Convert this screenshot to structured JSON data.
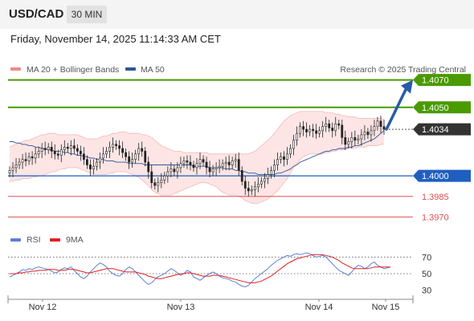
{
  "header": {
    "symbol": "USD/CAD",
    "timeframe": "30 MIN"
  },
  "datetime": "Friday, November 14, 2025 11:14:33 AM CET",
  "legend": {
    "ma20": {
      "label": "MA 20 + Bollinger Bands",
      "color": "#f08a8a"
    },
    "ma50": {
      "label": "MA 50",
      "color": "#2f5597"
    },
    "credit": "Research © 2025 Trading Central"
  },
  "rsi_legend": {
    "rsi": {
      "label": "RSI",
      "color": "#5b7fd6"
    },
    "ma9": {
      "label": "9MA",
      "color": "#e02020"
    }
  },
  "colors": {
    "resistance": "#4a9a00",
    "support": "#1f5fbf",
    "support_below": "#e05050",
    "arrow": "#2a5ba8",
    "current": "#333333",
    "bands_fill": "#fde0e0",
    "candle": "#222222"
  },
  "chart_data": [
    {
      "type": "candlestick",
      "ylim": [
        1.3955,
        1.4085
      ],
      "x_ticks": [
        "Nov 12",
        "Nov 13",
        "Nov 14",
        "Nov 15"
      ],
      "levels": [
        {
          "value": 1.407,
          "label": "1.4070",
          "kind": "resistance"
        },
        {
          "value": 1.405,
          "label": "1.4050",
          "kind": "resistance"
        },
        {
          "value": 1.4034,
          "label": "1.4034",
          "kind": "current"
        },
        {
          "value": 1.4,
          "label": "1.4000",
          "kind": "support"
        },
        {
          "value": 1.3985,
          "label": "1.3985",
          "kind": "support_below"
        },
        {
          "value": 1.397,
          "label": "1.3970",
          "kind": "support_below"
        }
      ],
      "close": [
        1.4004,
        1.4006,
        1.4008,
        1.401,
        1.4012,
        1.4011,
        1.4014,
        1.4013,
        1.4016,
        1.4018,
        1.402,
        1.4019,
        1.4021,
        1.4018,
        1.4016,
        1.4015,
        1.4019,
        1.4021,
        1.402,
        1.4022,
        1.402,
        1.4018,
        1.4016,
        1.4012,
        1.4008,
        1.4005,
        1.4007,
        1.401,
        1.4013,
        1.4016,
        1.4018,
        1.4021,
        1.4023,
        1.4022,
        1.402,
        1.4017,
        1.4014,
        1.401,
        1.4012,
        1.4016,
        1.402,
        1.4018,
        1.401,
        1.4003,
        1.3995,
        1.3993,
        1.3995,
        1.3997,
        1.4,
        1.4003,
        1.4005,
        1.4003,
        1.4006,
        1.4009,
        1.4011,
        1.401,
        1.4008,
        1.4006,
        1.4009,
        1.4012,
        1.401,
        1.4006,
        1.4003,
        1.4005,
        1.4006,
        1.4007,
        1.4009,
        1.401,
        1.4008,
        1.4011,
        1.4012,
        1.4004,
        1.3996,
        1.3991,
        1.3989,
        1.399,
        1.3992,
        1.3994,
        1.3996,
        1.3998,
        1.4001,
        1.4004,
        1.4008,
        1.4012,
        1.4014,
        1.4012,
        1.4016,
        1.402,
        1.4026,
        1.4031,
        1.4036,
        1.4034,
        1.4032,
        1.4034,
        1.4033,
        1.4031,
        1.4033,
        1.4036,
        1.4038,
        1.4035,
        1.4033,
        1.4038,
        1.4037,
        1.4028,
        1.4023,
        1.4025,
        1.4028,
        1.4026,
        1.4027,
        1.403,
        1.4032,
        1.403,
        1.4033,
        1.4036,
        1.404,
        1.4036,
        1.4034
      ],
      "bollinger_band_upper": [
        1.4021,
        1.4022,
        1.4023,
        1.4024,
        1.4025,
        1.4026,
        1.4026,
        1.4027,
        1.4028,
        1.4029,
        1.403,
        1.403,
        1.4031,
        1.4031,
        1.4031,
        1.403,
        1.403,
        1.403,
        1.403,
        1.403,
        1.403,
        1.403,
        1.4029,
        1.4028,
        1.4027,
        1.4027,
        1.4027,
        1.4027,
        1.4028,
        1.4029,
        1.4029,
        1.403,
        1.4031,
        1.4031,
        1.4032,
        1.4032,
        1.4032,
        1.4031,
        1.4031,
        1.4031,
        1.4031,
        1.403,
        1.403,
        1.4029,
        1.4028,
        1.4026,
        1.4024,
        1.4022,
        1.4021,
        1.402,
        1.4019,
        1.4018,
        1.4018,
        1.4018,
        1.4017,
        1.4017,
        1.4017,
        1.4017,
        1.4017,
        1.4017,
        1.4017,
        1.4017,
        1.4016,
        1.4016,
        1.4016,
        1.4016,
        1.4016,
        1.4016,
        1.4016,
        1.4016,
        1.4016,
        1.4016,
        1.4016,
        1.4016,
        1.4016,
        1.4017,
        1.4018,
        1.402,
        1.4022,
        1.4024,
        1.4026,
        1.4028,
        1.4031,
        1.4034,
        1.4037,
        1.404,
        1.4042,
        1.4044,
        1.4045,
        1.4046,
        1.4047,
        1.4047,
        1.4047,
        1.4047,
        1.4047,
        1.4047,
        1.4047,
        1.4047,
        1.4046,
        1.4046,
        1.4046,
        1.4045,
        1.4045,
        1.4044,
        1.4044,
        1.4043,
        1.4043,
        1.4043,
        1.4042,
        1.4042,
        1.4042,
        1.4042,
        1.4042,
        1.4042,
        1.4042,
        1.4042,
        1.4041
      ],
      "bollinger_band_lower": [
        1.3996,
        1.3996,
        1.3997,
        1.3997,
        1.3998,
        1.3998,
        1.3998,
        1.3999,
        1.3999,
        1.4,
        1.4,
        1.4001,
        1.4002,
        1.4003,
        1.4003,
        1.4004,
        1.4005,
        1.4005,
        1.4006,
        1.4006,
        1.4006,
        1.4006,
        1.4005,
        1.4004,
        1.4003,
        1.4002,
        1.4001,
        1.4001,
        1.4001,
        1.4001,
        1.4001,
        1.4002,
        1.4002,
        1.4003,
        1.4003,
        1.4003,
        1.4003,
        1.4002,
        1.4001,
        1.4,
        1.3999,
        1.3997,
        1.3995,
        1.3993,
        1.399,
        1.3988,
        1.3987,
        1.3986,
        1.3986,
        1.3986,
        1.3986,
        1.3987,
        1.3988,
        1.3989,
        1.399,
        1.3991,
        1.3992,
        1.3993,
        1.3994,
        1.3995,
        1.3995,
        1.3995,
        1.3994,
        1.3993,
        1.3992,
        1.399,
        1.3988,
        1.3987,
        1.3986,
        1.3986,
        1.3986,
        1.3985,
        1.3984,
        1.3982,
        1.3981,
        1.398,
        1.398,
        1.398,
        1.3981,
        1.3982,
        1.3983,
        1.3985,
        1.3987,
        1.3989,
        1.3992,
        1.3995,
        1.3998,
        1.4002,
        1.4006,
        1.4009,
        1.4012,
        1.4014,
        1.4015,
        1.4016,
        1.4016,
        1.4016,
        1.4016,
        1.4016,
        1.4017,
        1.4017,
        1.4018,
        1.4018,
        1.4019,
        1.4019,
        1.4019,
        1.402,
        1.402,
        1.402,
        1.4021,
        1.4021,
        1.4021,
        1.4022,
        1.4022,
        1.4022,
        1.4022,
        1.4023,
        1.4023
      ],
      "ma50": [
        1.4025,
        1.4025,
        1.4024,
        1.4024,
        1.4023,
        1.4023,
        1.4022,
        1.4022,
        1.4021,
        1.4021,
        1.402,
        1.402,
        1.4019,
        1.4019,
        1.4018,
        1.4018,
        1.4018,
        1.4017,
        1.4017,
        1.4016,
        1.4016,
        1.4015,
        1.4015,
        1.4014,
        1.4014,
        1.4013,
        1.4013,
        1.4012,
        1.4012,
        1.4012,
        1.4011,
        1.4011,
        1.4011,
        1.401,
        1.401,
        1.401,
        1.401,
        1.4009,
        1.4009,
        1.4009,
        1.4009,
        1.4009,
        1.4008,
        1.4008,
        1.4008,
        1.4008,
        1.4008,
        1.4008,
        1.4008,
        1.4008,
        1.4008,
        1.4008,
        1.4008,
        1.4008,
        1.4008,
        1.4008,
        1.4008,
        1.4007,
        1.4007,
        1.4007,
        1.4007,
        1.4007,
        1.4006,
        1.4006,
        1.4006,
        1.4006,
        1.4006,
        1.4005,
        1.4005,
        1.4005,
        1.4004,
        1.4004,
        1.4003,
        1.4003,
        1.4002,
        1.4002,
        1.4002,
        1.4001,
        1.4001,
        1.4001,
        1.4001,
        1.4001,
        1.4001,
        1.4002,
        1.4002,
        1.4003,
        1.4004,
        1.4005,
        1.4007,
        1.4008,
        1.401,
        1.4011,
        1.4012,
        1.4013,
        1.4014,
        1.4015,
        1.4016,
        1.4017,
        1.4018,
        1.4018,
        1.4019,
        1.4019,
        1.402,
        1.402,
        1.402,
        1.4021,
        1.4021,
        1.4022,
        1.4022,
        1.4023,
        1.4024,
        1.4025,
        1.4026,
        1.4027,
        1.4029,
        1.4031,
        1.4033
      ]
    },
    {
      "type": "line",
      "name": "RSI",
      "ylim": [
        20,
        80
      ],
      "y_ticks": [
        30,
        50,
        70
      ],
      "dotted_levels": [
        70,
        50
      ],
      "x_ticks": [
        "Nov 12",
        "Nov 13",
        "Nov 14",
        "Nov 15"
      ],
      "rsi": [
        46,
        48,
        50,
        52,
        55,
        54,
        56,
        55,
        57,
        58,
        57,
        56,
        55,
        53,
        51,
        52,
        55,
        57,
        56,
        58,
        54,
        50,
        46,
        44,
        47,
        52,
        56,
        60,
        63,
        61,
        58,
        53,
        50,
        48,
        47,
        50,
        55,
        58,
        56,
        52,
        48,
        44,
        40,
        37,
        39,
        43,
        46,
        48,
        50,
        53,
        56,
        54,
        51,
        48,
        50,
        54,
        52,
        46,
        44,
        42,
        45,
        48,
        50,
        52,
        50,
        47,
        45,
        44,
        43,
        41,
        40,
        37,
        35,
        34,
        36,
        40,
        44,
        47,
        50,
        53,
        56,
        60,
        63,
        66,
        68,
        70,
        72,
        71,
        73,
        74,
        73,
        74,
        75,
        74,
        72,
        70,
        71,
        72,
        70,
        66,
        62,
        58,
        54,
        52,
        50,
        48,
        52,
        57,
        60,
        59,
        56,
        58,
        62,
        64,
        60,
        58,
        56,
        57,
        58
      ],
      "ma9": [
        50,
        50,
        50,
        51,
        51,
        52,
        52,
        53,
        53,
        54,
        54,
        54,
        55,
        55,
        55,
        54,
        54,
        54,
        55,
        55,
        55,
        54,
        53,
        52,
        51,
        51,
        52,
        53,
        54,
        55,
        56,
        56,
        56,
        55,
        54,
        53,
        52,
        52,
        52,
        52,
        51,
        50,
        49,
        47,
        46,
        45,
        44,
        44,
        45,
        46,
        47,
        48,
        49,
        50,
        50,
        51,
        51,
        50,
        49,
        48,
        47,
        47,
        47,
        48,
        48,
        48,
        47,
        46,
        45,
        44,
        43,
        42,
        41,
        40,
        39,
        39,
        39,
        40,
        41,
        43,
        45,
        47,
        50,
        53,
        56,
        59,
        62,
        64,
        66,
        68,
        69,
        70,
        71,
        72,
        73,
        73,
        73,
        73,
        72,
        71,
        70,
        68,
        66,
        63,
        61,
        59,
        57,
        56,
        56,
        56,
        56,
        56,
        57,
        58,
        58,
        58,
        58,
        58,
        58
      ]
    }
  ]
}
